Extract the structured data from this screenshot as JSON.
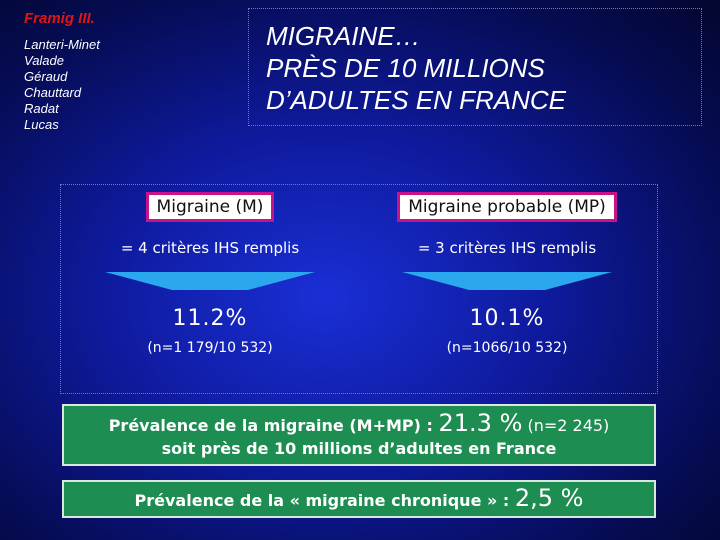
{
  "study": {
    "name": "Framig III.",
    "authors": [
      "Lanteri-Minet",
      "Valade",
      "Géraud",
      "Chauttard",
      "Radat",
      "Lucas"
    ]
  },
  "title": {
    "line1": "MIGRAINE…",
    "line2": "PRÈS DE 10 MILLIONS",
    "line3": "D’ADULTES EN FRANCE"
  },
  "columns": [
    {
      "label": "Migraine (M)",
      "criteria": "= 4 critères IHS remplis",
      "percent": "11.2%",
      "count": "(n=1 179/10 532)"
    },
    {
      "label": "Migraine probable (MP)",
      "criteria": "= 3 critères IHS remplis",
      "percent": "10.1%",
      "count": "(n=1066/10 532)"
    }
  ],
  "summary": {
    "line1_prefix": "Prévalence de la migraine (M+MP) : ",
    "line1_value": "21.3 %",
    "line1_count": " (n=2 245)",
    "line2": "soit près de 10 millions d’adultes en France"
  },
  "chronic": {
    "prefix": "Prévalence de la « migraine chronique » : ",
    "value": "2,5 %"
  },
  "colors": {
    "background": "#0e1a9c",
    "study_name": "#e01515",
    "label_border": "#c8128a",
    "arrow_fill": "#2aa7ee",
    "summary_fill": "#1e8d52"
  }
}
